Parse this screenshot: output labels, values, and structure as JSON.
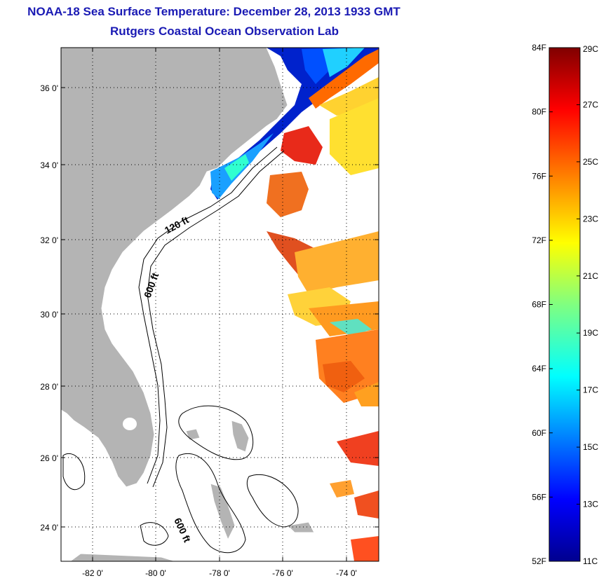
{
  "header": {
    "title": "NOAA-18 Sea Surface Temperature:  December 28, 2013 1933 GMT",
    "subtitle": "Rutgers Coastal Ocean Observation Lab"
  },
  "axes": {
    "lat_ticks": [
      "36 0'",
      "34 0'",
      "32 0'",
      "30 0'",
      "28 0'",
      "26 0'",
      "24 0'"
    ],
    "lon_ticks": [
      "-82 0'",
      "-80 0'",
      "-78 0'",
      "-76 0'",
      "-74 0'"
    ]
  },
  "contours": {
    "label_120": "120 ft",
    "label_600a": "600 ft",
    "label_600b": "600 ft"
  },
  "colorbar": {
    "fahrenheit": [
      "84F",
      "80F",
      "76F",
      "72F",
      "68F",
      "64F",
      "60F",
      "56F",
      "52F"
    ],
    "celsius": [
      "29C",
      "27C",
      "25C",
      "23C",
      "21C",
      "19C",
      "17C",
      "15C",
      "13C",
      "11C"
    ],
    "range_c": [
      11,
      29
    ],
    "range_f": [
      52,
      84
    ],
    "colors": [
      "#00008f",
      "#0000ff",
      "#00ffff",
      "#80ff80",
      "#ffff00",
      "#ff8000",
      "#ff0000",
      "#800000"
    ]
  },
  "colors": {
    "land": "#b4b4b4",
    "ocean": "#ffffff",
    "title": "#1a1ab4"
  }
}
